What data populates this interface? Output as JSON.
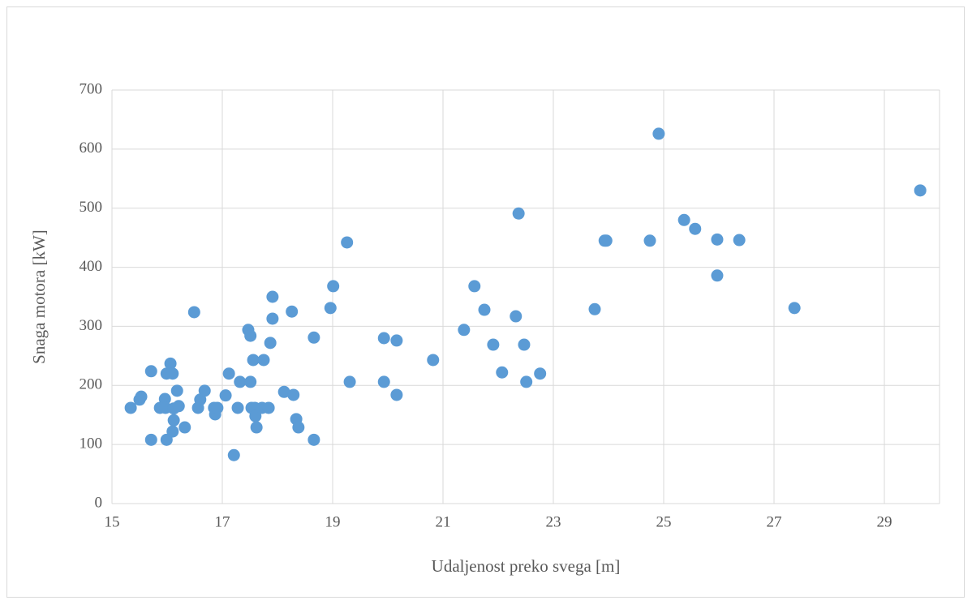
{
  "chart_data": {
    "type": "scatter",
    "xlabel": "Udaljenost preko svega [m]",
    "ylabel": "Snaga motora [kW]",
    "color": "#5b9bd5",
    "grid": true,
    "xlim": [
      15,
      30
    ],
    "xticks": [
      15,
      17,
      19,
      21,
      23,
      25,
      27,
      29
    ],
    "ylim": [
      0,
      700
    ],
    "yticks": [
      0,
      100,
      200,
      300,
      400,
      500,
      600,
      700
    ],
    "x": [
      15.34,
      15.5,
      15.53,
      15.71,
      15.71,
      15.87,
      15.96,
      15.97,
      15.99,
      15.99,
      16.06,
      16.1,
      16.12,
      16.12,
      16.1,
      16.18,
      16.21,
      16.32,
      16.49,
      16.56,
      16.6,
      16.68,
      16.85,
      16.87,
      16.91,
      17.06,
      17.12,
      17.21,
      17.28,
      17.32,
      17.47,
      17.51,
      17.51,
      17.53,
      17.56,
      17.59,
      17.6,
      17.62,
      17.72,
      17.75,
      17.84,
      17.87,
      17.91,
      17.91,
      18.12,
      18.26,
      18.29,
      18.34,
      18.38,
      18.66,
      18.66,
      18.96,
      19.01,
      19.26,
      19.31,
      19.93,
      19.93,
      20.16,
      20.16,
      20.82,
      21.38,
      21.57,
      21.75,
      21.91,
      22.07,
      22.32,
      22.37,
      22.47,
      22.51,
      22.76,
      23.75,
      23.93,
      23.96,
      24.75,
      24.91,
      25.37,
      25.57,
      25.97,
      25.97,
      26.37,
      27.37,
      29.65
    ],
    "values": [
      162,
      176,
      181,
      224,
      108,
      162,
      177,
      162,
      220,
      108,
      237,
      220,
      161,
      141,
      122,
      191,
      165,
      129,
      324,
      162,
      176,
      191,
      162,
      151,
      162,
      183,
      220,
      82,
      162,
      206,
      294,
      284,
      206,
      162,
      243,
      162,
      148,
      129,
      162,
      243,
      162,
      272,
      350,
      313,
      189,
      325,
      184,
      143,
      129,
      281,
      108,
      331,
      368,
      442,
      206,
      280,
      206,
      276,
      184,
      243,
      294,
      368,
      328,
      269,
      222,
      317,
      491,
      269,
      206,
      220,
      329,
      445,
      445,
      445,
      626,
      480,
      465,
      447,
      386,
      446,
      331,
      530
    ]
  }
}
